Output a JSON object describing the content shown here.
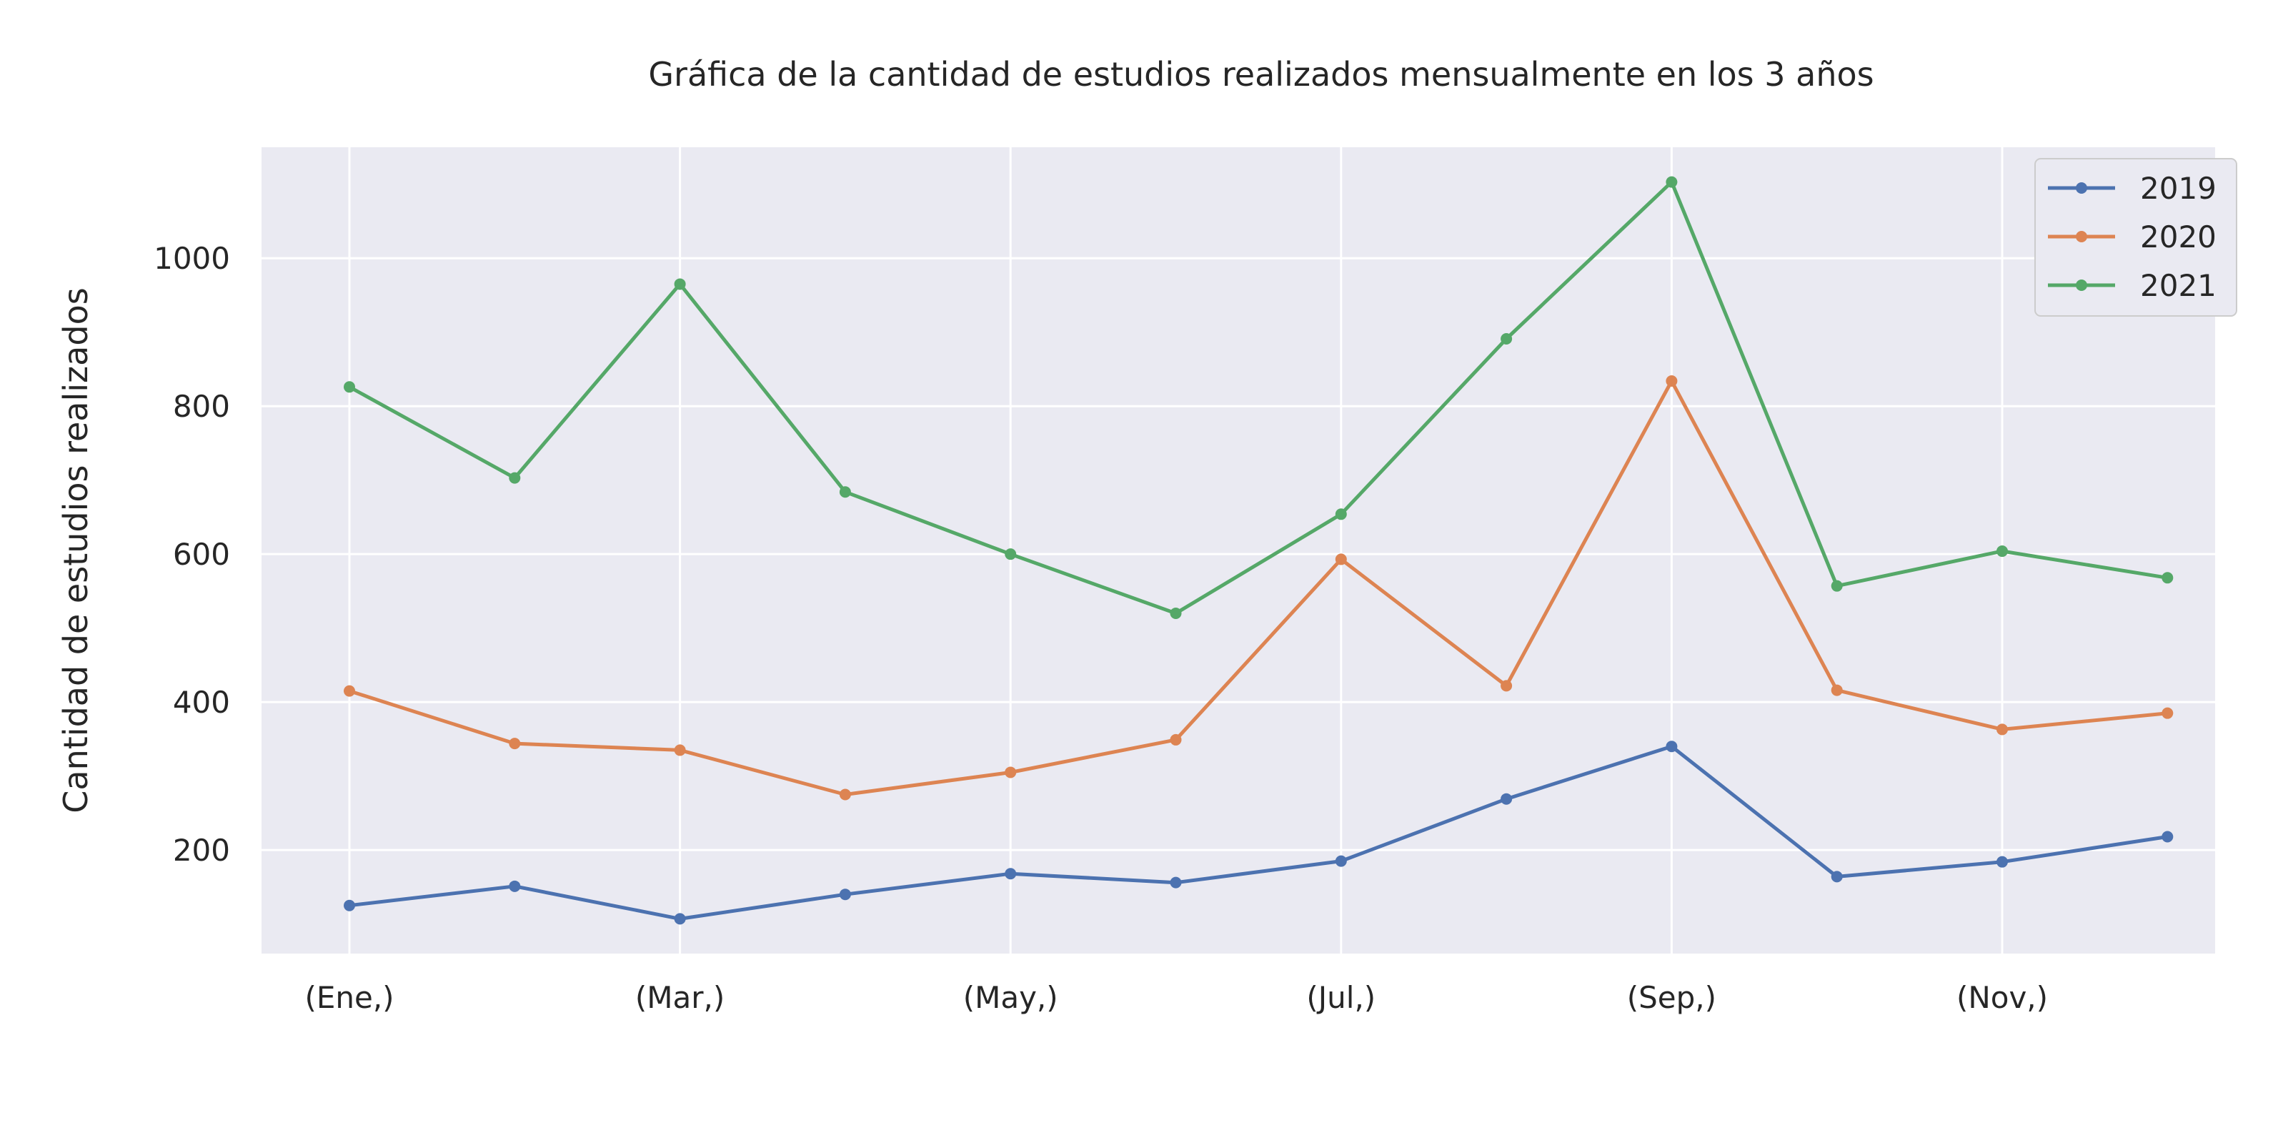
{
  "chart_data": {
    "type": "line",
    "title": "Gráfica de la cantidad de estudios realizados mensualmente en los 3 años",
    "xlabel": "",
    "ylabel": "Cantidad de estudios realizados",
    "x_ticks": [
      "(Ene,)",
      "(Mar,)",
      "(May,)",
      "(Jul,)",
      "(Sep,)",
      "(Nov,)"
    ],
    "y_ticks": [
      200,
      400,
      600,
      800,
      1000
    ],
    "ylim": [
      60,
      1150
    ],
    "grid": true,
    "legend": "top-right",
    "series": [
      {
        "name": "2019",
        "color": "#4c72b0",
        "values": [
          125,
          151,
          107,
          140,
          168,
          156,
          185,
          269,
          340,
          164,
          184,
          218
        ]
      },
      {
        "name": "2020",
        "color": "#dd8452",
        "values": [
          415,
          344,
          335,
          275,
          305,
          349,
          593,
          422,
          834,
          416,
          363,
          385
        ]
      },
      {
        "name": "2021",
        "color": "#55a868",
        "values": [
          826,
          703,
          965,
          684,
          600,
          520,
          654,
          891,
          1103,
          557,
          604,
          568
        ]
      }
    ]
  }
}
